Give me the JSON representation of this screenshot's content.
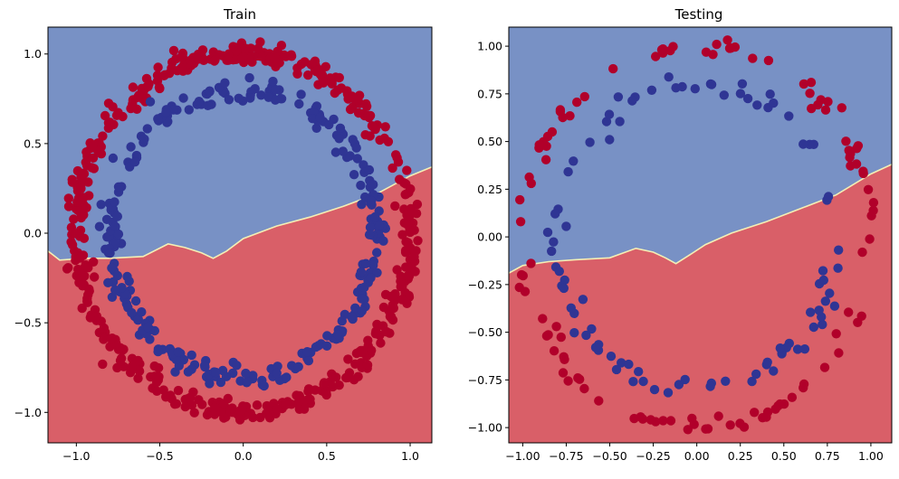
{
  "figure": {
    "background": "#ffffff"
  },
  "colors": {
    "region_blue": "#7891c5",
    "region_red": "#d95f68",
    "boundary": "#f4efb5",
    "point_red": "#b1002a",
    "point_blue": "#2f3594",
    "axis": "#000000"
  },
  "chart_data": [
    {
      "type": "scatter",
      "title": "Train",
      "xlim": [
        -1.17,
        1.13
      ],
      "ylim": [
        -1.17,
        1.15
      ],
      "xticks": [
        -1.0,
        -0.5,
        0.0,
        0.5,
        1.0
      ],
      "xtick_labels": [
        "−1.0",
        "−0.5",
        "0.0",
        "0.5",
        "1.0"
      ],
      "yticks": [
        -1.0,
        -0.5,
        0.0,
        0.5,
        1.0
      ],
      "ytick_labels": [
        "−1.0",
        "−0.5",
        "0.0",
        "0.5",
        "1.0"
      ],
      "grid": false,
      "boundary_x": [
        -1.17,
        -1.1,
        -0.95,
        -0.8,
        -0.6,
        -0.45,
        -0.35,
        -0.25,
        -0.18,
        -0.1,
        0.0,
        0.2,
        0.4,
        0.6,
        0.8,
        1.0,
        1.13
      ],
      "boundary_y": [
        -0.1,
        -0.15,
        -0.14,
        -0.14,
        -0.13,
        -0.06,
        -0.08,
        -0.11,
        -0.14,
        -0.1,
        -0.03,
        0.04,
        0.09,
        0.15,
        0.22,
        0.32,
        0.37
      ],
      "regions": {
        "above": "blue",
        "below": "red"
      },
      "series": [
        {
          "class": "outer",
          "color": "red",
          "radius": 1.0,
          "count": 500,
          "noise": 0.03
        },
        {
          "class": "inner",
          "color": "blue",
          "radius": 0.8,
          "count": 300,
          "noise": 0.03
        }
      ]
    },
    {
      "type": "scatter",
      "title": "Testing",
      "xlim": [
        -1.08,
        1.12
      ],
      "ylim": [
        -1.08,
        1.1
      ],
      "xticks": [
        -1.0,
        -0.75,
        -0.5,
        -0.25,
        0.0,
        0.25,
        0.5,
        0.75,
        1.0
      ],
      "xtick_labels": [
        "−1.00",
        "−0.75",
        "−0.50",
        "−0.25",
        "0.00",
        "0.25",
        "0.50",
        "0.75",
        "1.00"
      ],
      "yticks": [
        -1.0,
        -0.75,
        -0.5,
        -0.25,
        0.0,
        0.25,
        0.5,
        0.75,
        1.0
      ],
      "ytick_labels": [
        "−1.00",
        "−0.75",
        "−0.50",
        "−0.25",
        "0.00",
        "0.25",
        "0.50",
        "0.75",
        "1.00"
      ],
      "grid": false,
      "boundary_x": [
        -1.08,
        -1.0,
        -0.85,
        -0.7,
        -0.5,
        -0.35,
        -0.25,
        -0.18,
        -0.12,
        -0.05,
        0.05,
        0.2,
        0.4,
        0.6,
        0.8,
        1.0,
        1.12
      ],
      "boundary_y": [
        -0.19,
        -0.15,
        -0.13,
        -0.12,
        -0.11,
        -0.06,
        -0.08,
        -0.11,
        -0.14,
        -0.1,
        -0.04,
        0.02,
        0.08,
        0.15,
        0.22,
        0.33,
        0.38
      ],
      "regions": {
        "above": "blue",
        "below": "red"
      },
      "series": [
        {
          "class": "outer",
          "color": "red",
          "radius": 1.0,
          "count": 110,
          "noise": 0.03
        },
        {
          "class": "inner",
          "color": "blue",
          "radius": 0.8,
          "count": 90,
          "noise": 0.03
        }
      ]
    }
  ]
}
